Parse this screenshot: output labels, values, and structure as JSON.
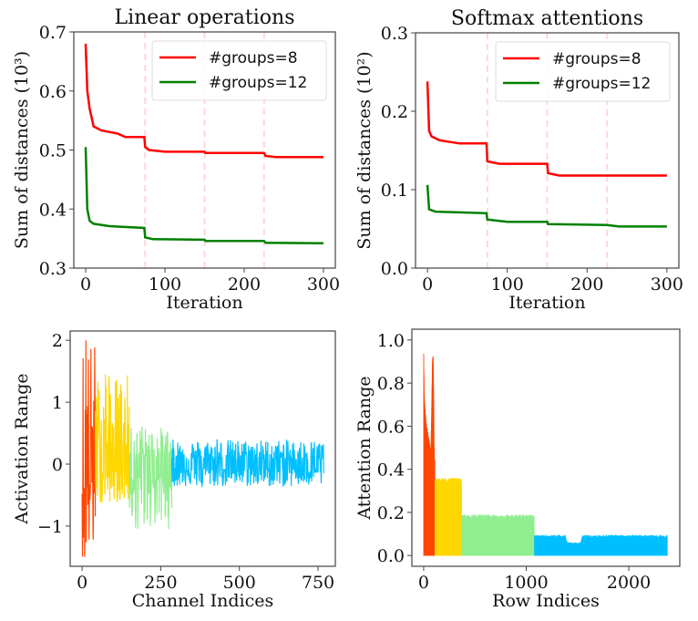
{
  "chart_data": [
    {
      "type": "line",
      "title": "Linear operations",
      "xlabel": "Iteration",
      "ylabel": "Sum of distances (10³)",
      "xlim": [
        -15,
        315
      ],
      "ylim": [
        0.3,
        0.7
      ],
      "xticks": [
        0,
        100,
        200,
        300
      ],
      "xtick_labels": [
        "0",
        "100",
        "200",
        "300"
      ],
      "yticks": [
        0.3,
        0.4,
        0.5,
        0.6,
        0.7
      ],
      "ytick_labels": [
        "0.3",
        "0.4",
        "0.5",
        "0.6",
        "0.7"
      ],
      "vlines": [
        75,
        150,
        225
      ],
      "vline_color": "#ffd6dc",
      "legend": "top-right",
      "series": [
        {
          "name": "#groups=8",
          "color": "#ff0000",
          "x": [
            0,
            2,
            5,
            10,
            20,
            40,
            45,
            50,
            74,
            75,
            80,
            100,
            150,
            151,
            225,
            227,
            240,
            300
          ],
          "y": [
            0.68,
            0.6,
            0.57,
            0.54,
            0.533,
            0.528,
            0.525,
            0.522,
            0.522,
            0.505,
            0.5,
            0.497,
            0.497,
            0.495,
            0.495,
            0.49,
            0.488,
            0.488
          ]
        },
        {
          "name": "#groups=12",
          "color": "#008000",
          "x": [
            0,
            2,
            5,
            10,
            30,
            74,
            75,
            85,
            150,
            151,
            225,
            227,
            300
          ],
          "y": [
            0.505,
            0.4,
            0.38,
            0.375,
            0.371,
            0.368,
            0.352,
            0.349,
            0.348,
            0.346,
            0.346,
            0.343,
            0.342
          ]
        }
      ]
    },
    {
      "type": "line",
      "title": "Softmax attentions",
      "xlabel": "Iteration",
      "ylabel": "Sum of distances (10²)",
      "xlim": [
        -15,
        315
      ],
      "ylim": [
        0.0,
        0.3
      ],
      "xticks": [
        0,
        100,
        200,
        300
      ],
      "xtick_labels": [
        "0",
        "100",
        "200",
        "300"
      ],
      "yticks": [
        0.0,
        0.1,
        0.2,
        0.3
      ],
      "ytick_labels": [
        "0.0",
        "0.1",
        "0.2",
        "0.3"
      ],
      "vlines": [
        75,
        150,
        225
      ],
      "vline_color": "#ffd6dc",
      "legend": "top-right",
      "series": [
        {
          "name": "#groups=8",
          "color": "#ff0000",
          "x": [
            0,
            2,
            5,
            15,
            40,
            74,
            75,
            90,
            150,
            151,
            165,
            300
          ],
          "y": [
            0.238,
            0.175,
            0.168,
            0.163,
            0.159,
            0.159,
            0.136,
            0.133,
            0.133,
            0.121,
            0.118,
            0.118
          ]
        },
        {
          "name": "#groups=12",
          "color": "#008000",
          "x": [
            0,
            2,
            10,
            74,
            75,
            100,
            150,
            151,
            225,
            240,
            300
          ],
          "y": [
            0.106,
            0.075,
            0.072,
            0.07,
            0.062,
            0.059,
            0.059,
            0.056,
            0.055,
            0.053,
            0.053
          ]
        }
      ]
    },
    {
      "type": "line",
      "title": "",
      "xlabel": "Channel Indices",
      "ylabel": "Activation Range",
      "xlim": [
        -38,
        805
      ],
      "ylim": [
        -1.65,
        2.15
      ],
      "xticks": [
        0,
        250,
        500,
        750
      ],
      "xtick_labels": [
        "0",
        "250",
        "500",
        "750"
      ],
      "yticks": [
        -1,
        0,
        1,
        2
      ],
      "ytick_labels": [
        "−1",
        "0",
        "1",
        "2"
      ],
      "segments": [
        {
          "start": 0,
          "end": 42,
          "color": "#ff4500",
          "min": -1.5,
          "max": 2.0
        },
        {
          "start": 42,
          "end": 150,
          "color": "#ffd700",
          "min": -0.62,
          "max": 1.45
        },
        {
          "start": 150,
          "end": 285,
          "color": "#90ee90",
          "min": -1.05,
          "max": 0.6
        },
        {
          "start": 285,
          "end": 768,
          "color": "#00bfff",
          "min": -0.37,
          "max": 0.4
        }
      ]
    },
    {
      "type": "area",
      "title": "",
      "xlabel": "Row Indices",
      "ylabel": "Attention Range",
      "xlim": [
        -115,
        2497
      ],
      "ylim": [
        -0.05,
        1.05
      ],
      "xticks": [
        0,
        1000,
        2000
      ],
      "xtick_labels": [
        "0",
        "1000",
        "2000"
      ],
      "yticks": [
        0.0,
        0.2,
        0.4,
        0.6,
        0.8,
        1.0
      ],
      "ytick_labels": [
        "0.0",
        "0.2",
        "0.4",
        "0.6",
        "0.8",
        "1.0"
      ],
      "segments": [
        {
          "start": 0,
          "end": 110,
          "color": "#ff4500",
          "envelope": [
            [
              0,
              1.0
            ],
            [
              10,
              0.72
            ],
            [
              25,
              0.62
            ],
            [
              50,
              0.55
            ],
            [
              70,
              0.5
            ],
            [
              85,
              0.93
            ],
            [
              95,
              0.93
            ],
            [
              105,
              0.45
            ],
            [
              110,
              0.45
            ]
          ]
        },
        {
          "start": 110,
          "end": 370,
          "color": "#ffd700",
          "envelope": [
            [
              110,
              0.36
            ],
            [
              370,
              0.36
            ]
          ]
        },
        {
          "start": 370,
          "end": 1080,
          "color": "#90ee90",
          "envelope": [
            [
              370,
              0.19
            ],
            [
              1080,
              0.19
            ]
          ]
        },
        {
          "start": 1080,
          "end": 2376,
          "color": "#00bfff",
          "envelope": [
            [
              1080,
              0.095
            ],
            [
              1380,
              0.095
            ],
            [
              1400,
              0.06
            ],
            [
              1530,
              0.06
            ],
            [
              1550,
              0.095
            ],
            [
              2376,
              0.095
            ]
          ]
        }
      ]
    }
  ]
}
